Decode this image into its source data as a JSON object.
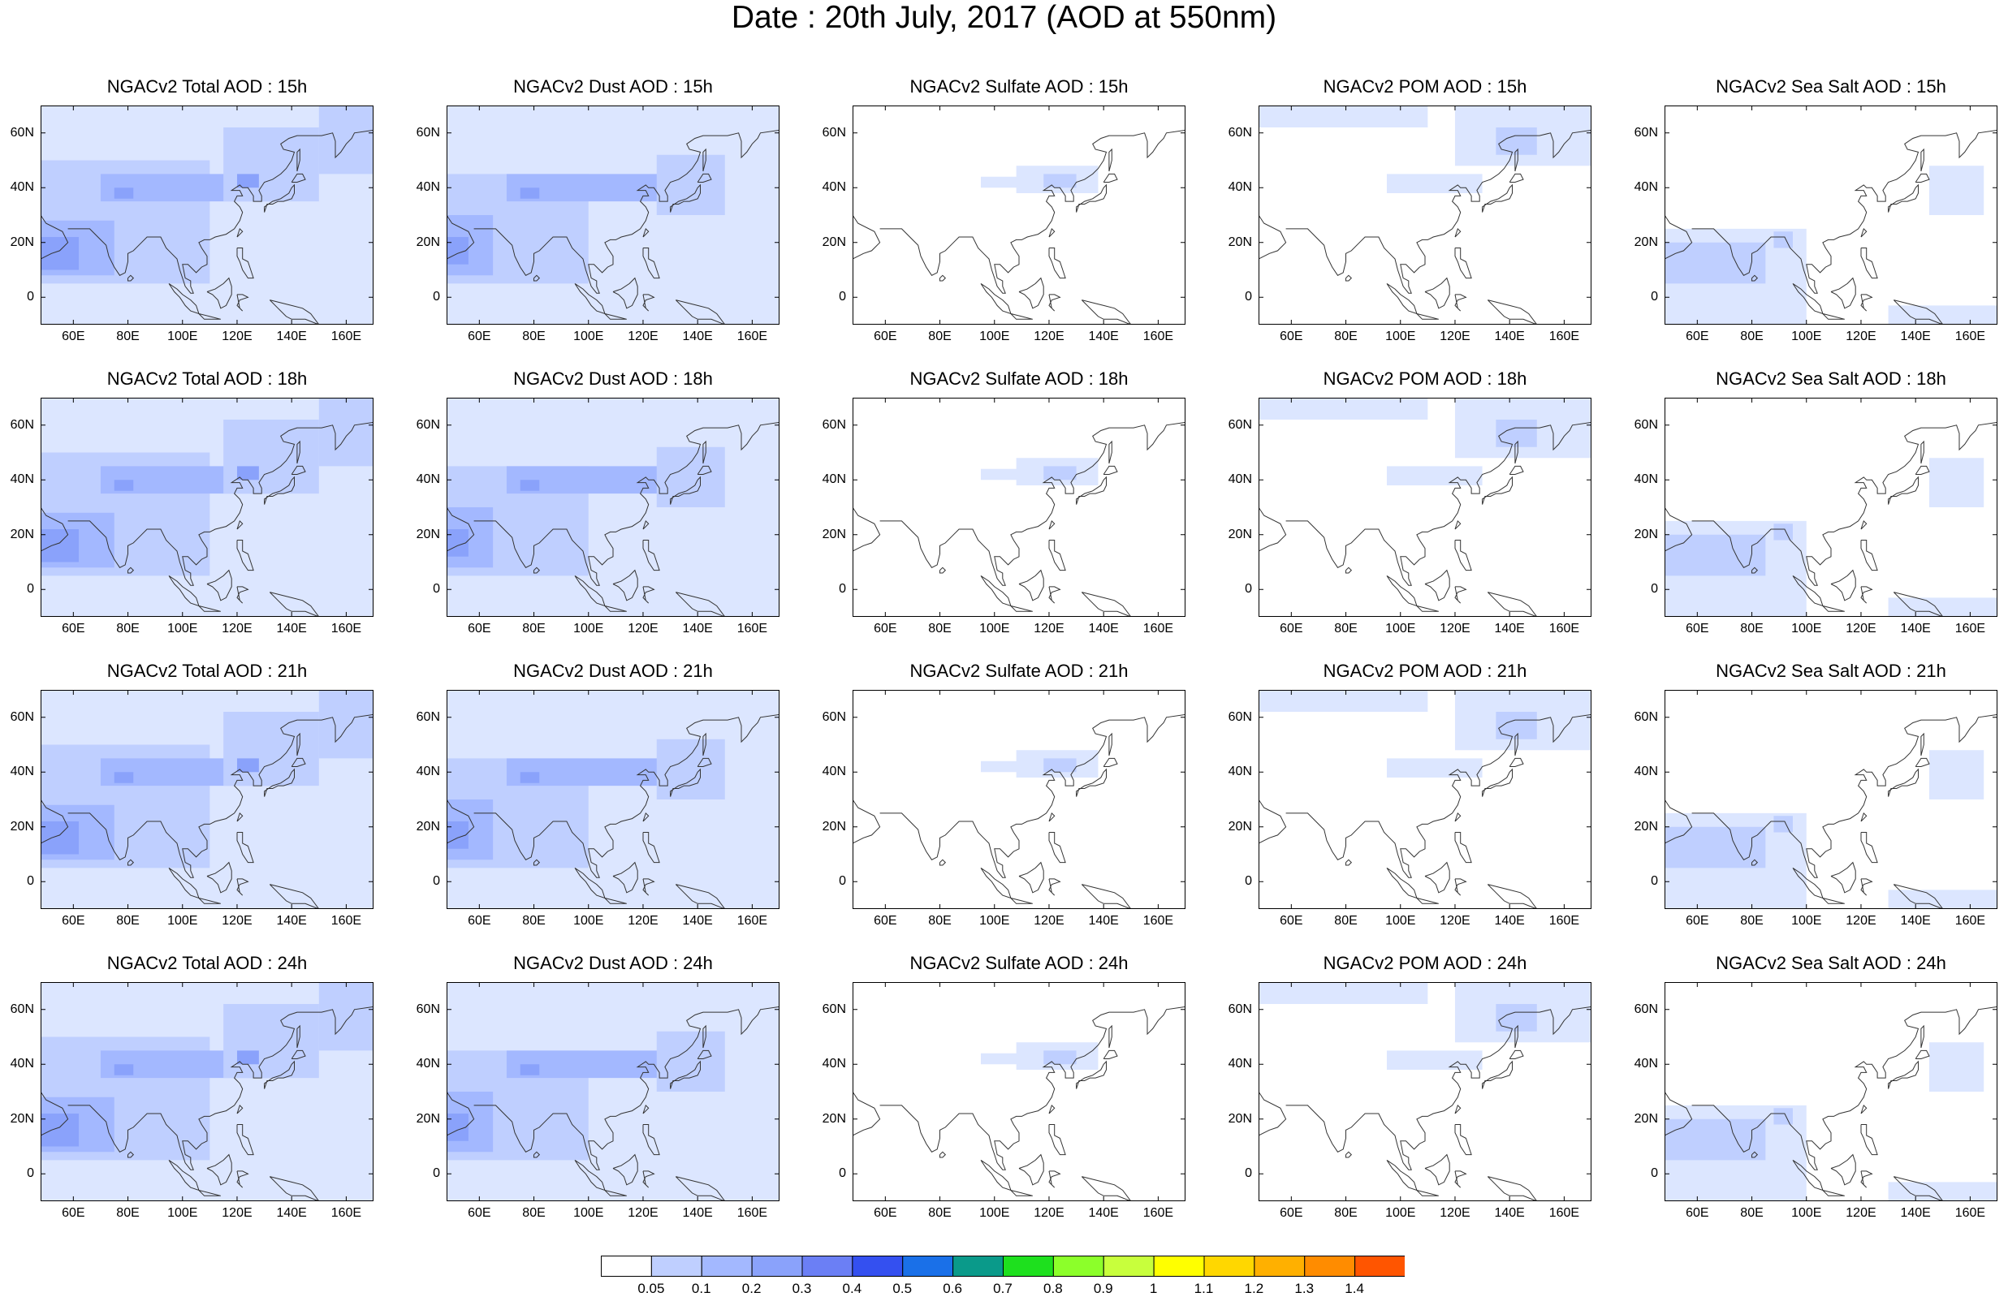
{
  "title": "Date : 20th July, 2017 (AOD at 550nm)",
  "species": [
    {
      "key": "total",
      "label": "NGACv2 Total AOD",
      "labels_by_row": [
        "NGACv2 Total AOD : 15h",
        "NGACv2 Total AOD : 18h",
        "NGACv2 Total AOD : 21h",
        "NGACv2 Total AOD : 24h"
      ]
    },
    {
      "key": "dust",
      "label": "NGACv2 Dust AOD",
      "labels_by_row": [
        "NGACv2 Dust AOD : 15h",
        "NGACv2 Dust AOD : 18h",
        "NGACv2 Dust AOD : 21h",
        "NGACv2 Dust AOD : 24h"
      ]
    },
    {
      "key": "sulfate",
      "label": "NGACv2 Sulfate AOD",
      "labels_by_row": [
        "NGACv2 Sulfate AOD : 15h",
        "NGACv2 Sulfate AOD : 18h",
        "NGACv2 Sulfate AOD : 21h",
        "NGACv2 Sulfate AOD : 24h"
      ]
    },
    {
      "key": "pom",
      "label": "NGACv2 POM AOD",
      "labels_by_row": [
        "NGACv2 POM AOD : 15h",
        "NGACv2 POM AOD : 18h",
        "NGACv2 POM AOD : 21h",
        "NGACv2 POM AOD : 24h"
      ]
    },
    {
      "key": "seasalt",
      "label": "NGACv2 Sea Salt AOD",
      "labels_by_row": [
        "NGACv2 Sea Salt AOD : 15h",
        "NGACv2 Sea Salt AOD : 18h",
        "NGACv2 Sea Salt AOD : 21h",
        "NGACv2 Sea Salt  AOD : 24h"
      ]
    }
  ],
  "hours": [
    "15h",
    "18h",
    "21h",
    "24h"
  ],
  "map_extent": {
    "lon": [
      48,
      170
    ],
    "lat": [
      -10,
      70
    ]
  },
  "lon_ticks": [
    "60E",
    "80E",
    "100E",
    "120E",
    "140E",
    "160E"
  ],
  "lon_tick_values": [
    60,
    80,
    100,
    120,
    140,
    160
  ],
  "lat_ticks": [
    "60N",
    "40N",
    "20N",
    "0"
  ],
  "lat_tick_values": [
    60,
    40,
    20,
    0
  ],
  "colorbar": {
    "labels": [
      "0.05",
      "0.1",
      "0.2",
      "0.3",
      "0.4",
      "0.5",
      "0.6",
      "0.7",
      "0.8",
      "0.9",
      "1",
      "1.1",
      "1.2",
      "1.3",
      "1.4"
    ],
    "colors": [
      "#ffffff",
      "#dce6ff",
      "#bfcfff",
      "#a3b8ff",
      "#8aa2fb",
      "#6b7ff5",
      "#3450f0",
      "#1a70e8",
      "#0a9a8a",
      "#1ee01e",
      "#8cff2a",
      "#c8ff3c",
      "#ffff00",
      "#ffd700",
      "#ffb000",
      "#ff8c00",
      "#ff5500",
      "#ff1a1a"
    ]
  },
  "regions": {
    "total": [
      {
        "lon": [
          48,
          170
        ],
        "lat": [
          -10,
          70
        ],
        "level": 1
      },
      {
        "lon": [
          48,
          110
        ],
        "lat": [
          5,
          50
        ],
        "level": 2
      },
      {
        "lon": [
          48,
          75
        ],
        "lat": [
          8,
          28
        ],
        "level": 3
      },
      {
        "lon": [
          48,
          62
        ],
        "lat": [
          10,
          22
        ],
        "level": 4
      },
      {
        "lon": [
          70,
          135
        ],
        "lat": [
          35,
          45
        ],
        "level": 3
      },
      {
        "lon": [
          75,
          82
        ],
        "lat": [
          36,
          40
        ],
        "level": 4
      },
      {
        "lon": [
          115,
          150
        ],
        "lat": [
          35,
          62
        ],
        "level": 2
      },
      {
        "lon": [
          120,
          128
        ],
        "lat": [
          40,
          45
        ],
        "level": 4
      },
      {
        "lon": [
          150,
          170
        ],
        "lat": [
          45,
          70
        ],
        "level": 2
      }
    ],
    "dust": [
      {
        "lon": [
          48,
          170
        ],
        "lat": [
          -10,
          70
        ],
        "level": 1
      },
      {
        "lon": [
          48,
          100
        ],
        "lat": [
          5,
          45
        ],
        "level": 2
      },
      {
        "lon": [
          48,
          65
        ],
        "lat": [
          8,
          30
        ],
        "level": 3
      },
      {
        "lon": [
          48,
          56
        ],
        "lat": [
          12,
          22
        ],
        "level": 4
      },
      {
        "lon": [
          70,
          130
        ],
        "lat": [
          35,
          45
        ],
        "level": 3
      },
      {
        "lon": [
          75,
          82
        ],
        "lat": [
          36,
          40
        ],
        "level": 4
      },
      {
        "lon": [
          125,
          150
        ],
        "lat": [
          30,
          52
        ],
        "level": 2
      }
    ],
    "sulfate": [
      {
        "lon": [
          95,
          112
        ],
        "lat": [
          40,
          44
        ],
        "level": 1
      },
      {
        "lon": [
          108,
          138
        ],
        "lat": [
          38,
          48
        ],
        "level": 1
      },
      {
        "lon": [
          118,
          130
        ],
        "lat": [
          40,
          45
        ],
        "level": 2
      }
    ],
    "pom": [
      {
        "lon": [
          48,
          110
        ],
        "lat": [
          62,
          70
        ],
        "level": 1
      },
      {
        "lon": [
          120,
          170
        ],
        "lat": [
          48,
          70
        ],
        "level": 1
      },
      {
        "lon": [
          135,
          150
        ],
        "lat": [
          52,
          62
        ],
        "level": 2
      },
      {
        "lon": [
          95,
          130
        ],
        "lat": [
          38,
          45
        ],
        "level": 1
      }
    ],
    "seasalt": [
      {
        "lon": [
          48,
          100
        ],
        "lat": [
          -10,
          25
        ],
        "level": 1
      },
      {
        "lon": [
          48,
          85
        ],
        "lat": [
          5,
          20
        ],
        "level": 2
      },
      {
        "lon": [
          88,
          95
        ],
        "lat": [
          18,
          24
        ],
        "level": 2
      },
      {
        "lon": [
          130,
          170
        ],
        "lat": [
          -10,
          -3
        ],
        "level": 1
      },
      {
        "lon": [
          145,
          165
        ],
        "lat": [
          30,
          48
        ],
        "level": 1
      }
    ]
  }
}
